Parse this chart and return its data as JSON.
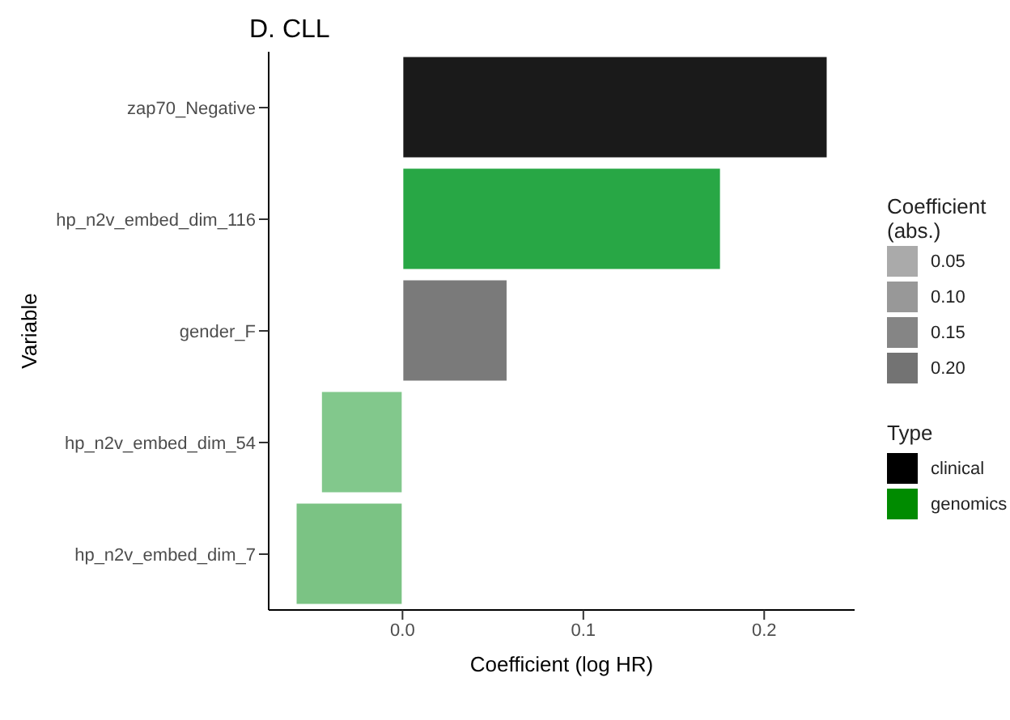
{
  "chart_data": {
    "type": "bar",
    "orientation": "horizontal",
    "stacked": true,
    "title": "D. CLL",
    "xlabel": "Coefficient (log HR)",
    "ylabel": "Variable",
    "categories": [
      "zap70_Negative",
      "hp_n2v_embed_dim_116",
      "gender_F",
      "hp_n2v_embed_dim_54",
      "hp_n2v_embed_dim_7"
    ],
    "series": [
      {
        "name": "clinical",
        "color": "#000000",
        "values": [
          0.235,
          null,
          0.058,
          null,
          null
        ],
        "colors": [
          "#1a1a1a",
          null,
          "#7a7a7a",
          null,
          null
        ]
      },
      {
        "name": "genomics",
        "color": "#008b00",
        "values": [
          null,
          0.176,
          null,
          -0.045,
          -0.059
        ],
        "colors": [
          null,
          "#28a745",
          null,
          "#82c88c",
          "#7bc384"
        ]
      }
    ],
    "xlim": [
      -0.074,
      0.25
    ],
    "xticks": [
      {
        "value": 0,
        "label": "0.0"
      },
      {
        "value": 0.1,
        "label": "0.1"
      },
      {
        "value": 0.2,
        "label": "0.2"
      }
    ],
    "legend": "right",
    "legend_title": "Type",
    "clabel": "Coefficient (abs.)",
    "cticks": [
      {
        "value": 0.05,
        "label": "0.05"
      },
      {
        "value": 0.1,
        "label": "0.10"
      },
      {
        "value": 0.15,
        "label": "0.15"
      },
      {
        "value": 0.2,
        "label": "0.20"
      }
    ]
  }
}
